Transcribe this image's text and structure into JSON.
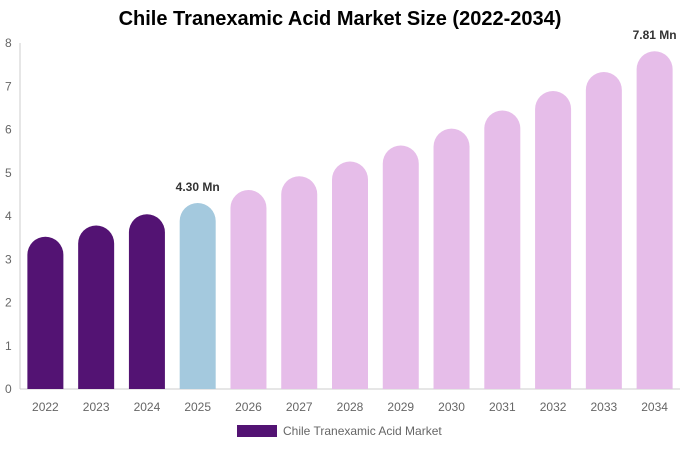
{
  "chart_data": {
    "type": "bar",
    "title": "Chile Tranexamic Acid Market Size (2022-2034)",
    "xlabel": "",
    "ylabel": "",
    "categories": [
      "2022",
      "2023",
      "2024",
      "2025",
      "2026",
      "2027",
      "2028",
      "2029",
      "2030",
      "2031",
      "2032",
      "2033",
      "2034"
    ],
    "series": [
      {
        "name": "Chile Tranexamic Acid Market",
        "values": [
          3.52,
          3.78,
          4.04,
          4.3,
          4.6,
          4.92,
          5.26,
          5.63,
          6.02,
          6.44,
          6.89,
          7.33,
          7.81
        ]
      }
    ],
    "data_labels": [
      {
        "category": "2025",
        "text": "4.30 Mn"
      },
      {
        "category": "2034",
        "text": "7.81 Mn"
      }
    ],
    "ylim": [
      0,
      8
    ],
    "yticks": [
      0,
      1,
      2,
      3,
      4,
      5,
      6,
      7,
      8
    ],
    "grid": false,
    "legend_position": "bottom",
    "colors": {
      "historical": "#531373",
      "current": "#a4c9de",
      "forecast": "#e6bde9"
    },
    "color_groups": {
      "historical": [
        "2022",
        "2023",
        "2024"
      ],
      "current": [
        "2025"
      ],
      "forecast": [
        "2026",
        "2027",
        "2028",
        "2029",
        "2030",
        "2031",
        "2032",
        "2033",
        "2034"
      ]
    }
  }
}
